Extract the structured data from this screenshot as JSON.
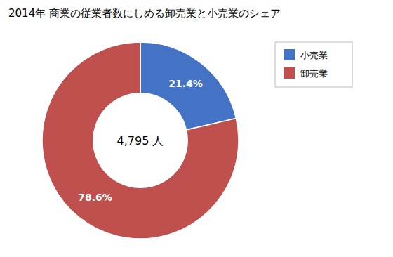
{
  "chart_data": {
    "type": "donut",
    "title": "2014年 商業の従業者数にしめる卸売業と小売業のシェア",
    "annotations": [
      "4,795 人"
    ],
    "categories": [
      "小売業",
      "卸売業"
    ],
    "values": [
      21.4,
      78.6
    ],
    "value_labels": [
      "21.4%",
      "78.6%"
    ],
    "colors": [
      "#4472C4",
      "#C0504D"
    ],
    "data_labels": true,
    "legend": "right"
  }
}
